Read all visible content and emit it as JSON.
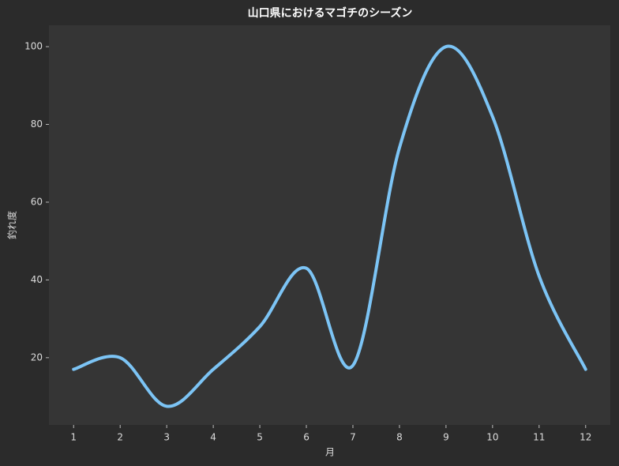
{
  "chart_data": {
    "type": "line",
    "title": "山口県におけるマゴチのシーズン",
    "x_label": "月",
    "y_label": "釣れ度",
    "x": [
      1,
      2,
      3,
      4,
      5,
      6,
      7,
      8,
      9,
      10,
      11,
      12
    ],
    "series": [
      {
        "name": "釣れ度",
        "color": "#7cc4f5",
        "values": [
          17,
          20,
          7.5,
          17,
          28,
          43,
          18,
          74,
          100,
          82,
          41,
          17
        ]
      }
    ],
    "xlim": [
      0.47,
      12.53
    ],
    "ylim": [
      2.7,
      105.5
    ],
    "xticks": [
      1,
      2,
      3,
      4,
      5,
      6,
      7,
      8,
      9,
      10,
      11,
      12
    ],
    "yticks": [
      20,
      40,
      60,
      80,
      100
    ],
    "grid": false
  }
}
